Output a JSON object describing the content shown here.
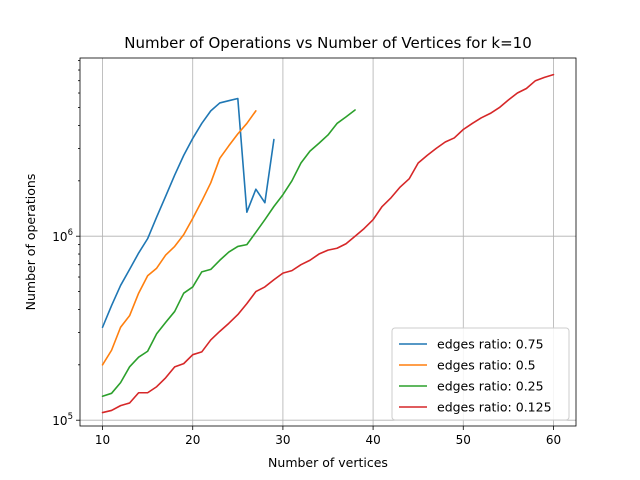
{
  "chart_data": {
    "type": "line",
    "title": "Number of Operations vs Number of Vertices for k=10",
    "xlabel": "Number of vertices",
    "ylabel": "Number of operations",
    "xlim": [
      7.5,
      62.5
    ],
    "ylim": [
      93000,
      9300000
    ],
    "yscale": "log",
    "grid": true,
    "legend_position": "lower-right",
    "x_ticks": [
      10,
      20,
      30,
      40,
      50,
      60
    ],
    "y_ticks": [
      {
        "value": 100000,
        "base": "10",
        "exp": "5"
      },
      {
        "value": 1000000,
        "base": "10",
        "exp": "6"
      }
    ],
    "series": [
      {
        "name": "edges ratio: 0.75",
        "color": "#1f77b4",
        "x": [
          10,
          11,
          12,
          13,
          14,
          15,
          16,
          17,
          18,
          19,
          20,
          21,
          22,
          23,
          24,
          25,
          26,
          27,
          28,
          29
        ],
        "y": [
          320000,
          420000,
          540000,
          660000,
          810000,
          970000,
          1270000,
          1650000,
          2150000,
          2750000,
          3400000,
          4100000,
          4800000,
          5300000,
          5450000,
          5600000,
          1350000,
          1800000,
          1520000,
          3350000
        ]
      },
      {
        "name": "edges ratio: 0.5",
        "color": "#ff7f0e",
        "x": [
          10,
          11,
          12,
          13,
          14,
          15,
          16,
          17,
          18,
          19,
          20,
          21,
          22,
          23,
          24,
          25,
          26,
          27
        ],
        "y": [
          200000,
          240000,
          320000,
          370000,
          490000,
          610000,
          670000,
          790000,
          880000,
          1020000,
          1250000,
          1550000,
          1950000,
          2650000,
          3100000,
          3600000,
          4100000,
          4800000
        ]
      },
      {
        "name": "edges ratio: 0.25",
        "color": "#2ca02c",
        "x": [
          10,
          11,
          12,
          13,
          14,
          15,
          16,
          17,
          18,
          19,
          20,
          21,
          22,
          23,
          24,
          25,
          26,
          27,
          28,
          29,
          30,
          31,
          32,
          33,
          34,
          35,
          36,
          37,
          38
        ],
        "y": [
          135000,
          140000,
          160000,
          195000,
          220000,
          237000,
          295000,
          340000,
          390000,
          490000,
          530000,
          640000,
          660000,
          740000,
          820000,
          880000,
          900000,
          1050000,
          1230000,
          1450000,
          1680000,
          2000000,
          2500000,
          2900000,
          3200000,
          3550000,
          4100000,
          4450000,
          4850000
        ]
      },
      {
        "name": "edges ratio: 0.125",
        "color": "#d62728",
        "x": [
          10,
          11,
          12,
          13,
          14,
          15,
          16,
          17,
          18,
          19,
          20,
          21,
          22,
          23,
          24,
          25,
          26,
          27,
          28,
          29,
          30,
          31,
          32,
          33,
          34,
          35,
          36,
          37,
          38,
          39,
          40,
          41,
          42,
          43,
          44,
          45,
          46,
          47,
          48,
          49,
          50,
          51,
          52,
          53,
          54,
          55,
          56,
          57,
          58,
          59,
          60
        ],
        "y": [
          110000,
          113000,
          120000,
          124000,
          141000,
          141000,
          152000,
          170000,
          195000,
          203000,
          227000,
          235000,
          273000,
          304000,
          336000,
          375000,
          430000,
          500000,
          530000,
          580000,
          630000,
          650000,
          700000,
          740000,
          800000,
          840000,
          860000,
          910000,
          1000000,
          1100000,
          1230000,
          1450000,
          1620000,
          1850000,
          2050000,
          2500000,
          2750000,
          3000000,
          3250000,
          3420000,
          3800000,
          4100000,
          4400000,
          4650000,
          5000000,
          5500000,
          6000000,
          6350000,
          7000000,
          7300000,
          7550000
        ]
      }
    ]
  }
}
